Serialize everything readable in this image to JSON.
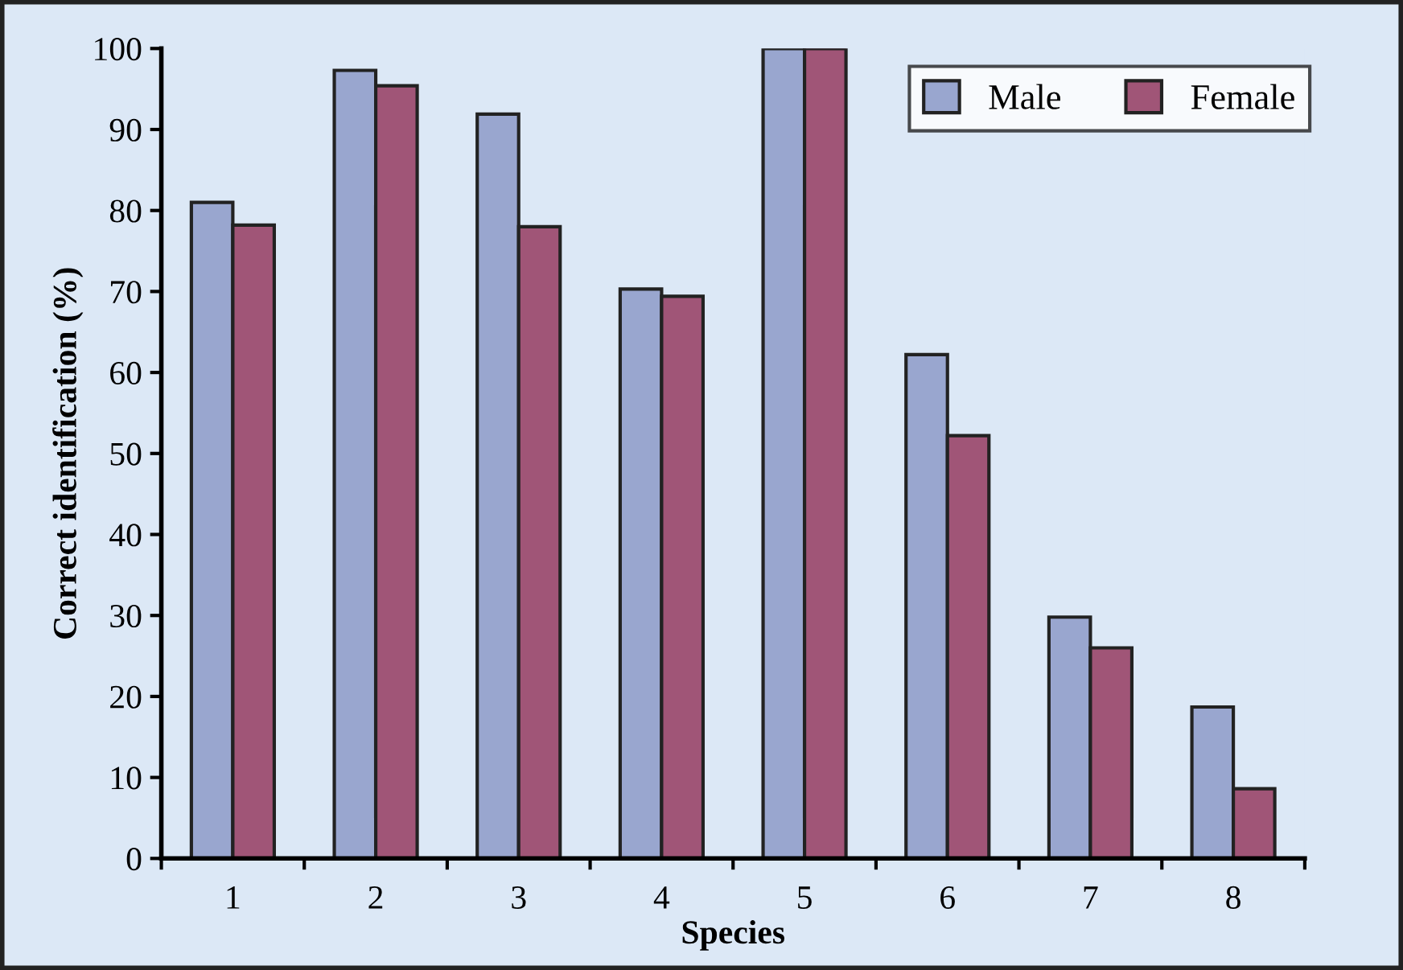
{
  "chart_data": {
    "type": "bar",
    "xlabel": "Species",
    "ylabel": "Correct identification (%)",
    "categories": [
      "1",
      "2",
      "3",
      "4",
      "5",
      "6",
      "7",
      "8"
    ],
    "series": [
      {
        "name": "Male",
        "color": "#99a6cf",
        "values": [
          81,
          97.3,
          91.9,
          70.3,
          100,
          62.2,
          29.8,
          18.7
        ]
      },
      {
        "name": "Female",
        "color": "#a05577",
        "values": [
          78.2,
          95.4,
          78,
          69.4,
          100,
          52.2,
          26,
          8.6
        ]
      }
    ],
    "ylim": [
      0,
      100
    ],
    "yticks": [
      0,
      10,
      20,
      30,
      40,
      50,
      60,
      70,
      80,
      90,
      100
    ],
    "grid": false,
    "legend": "top right"
  }
}
